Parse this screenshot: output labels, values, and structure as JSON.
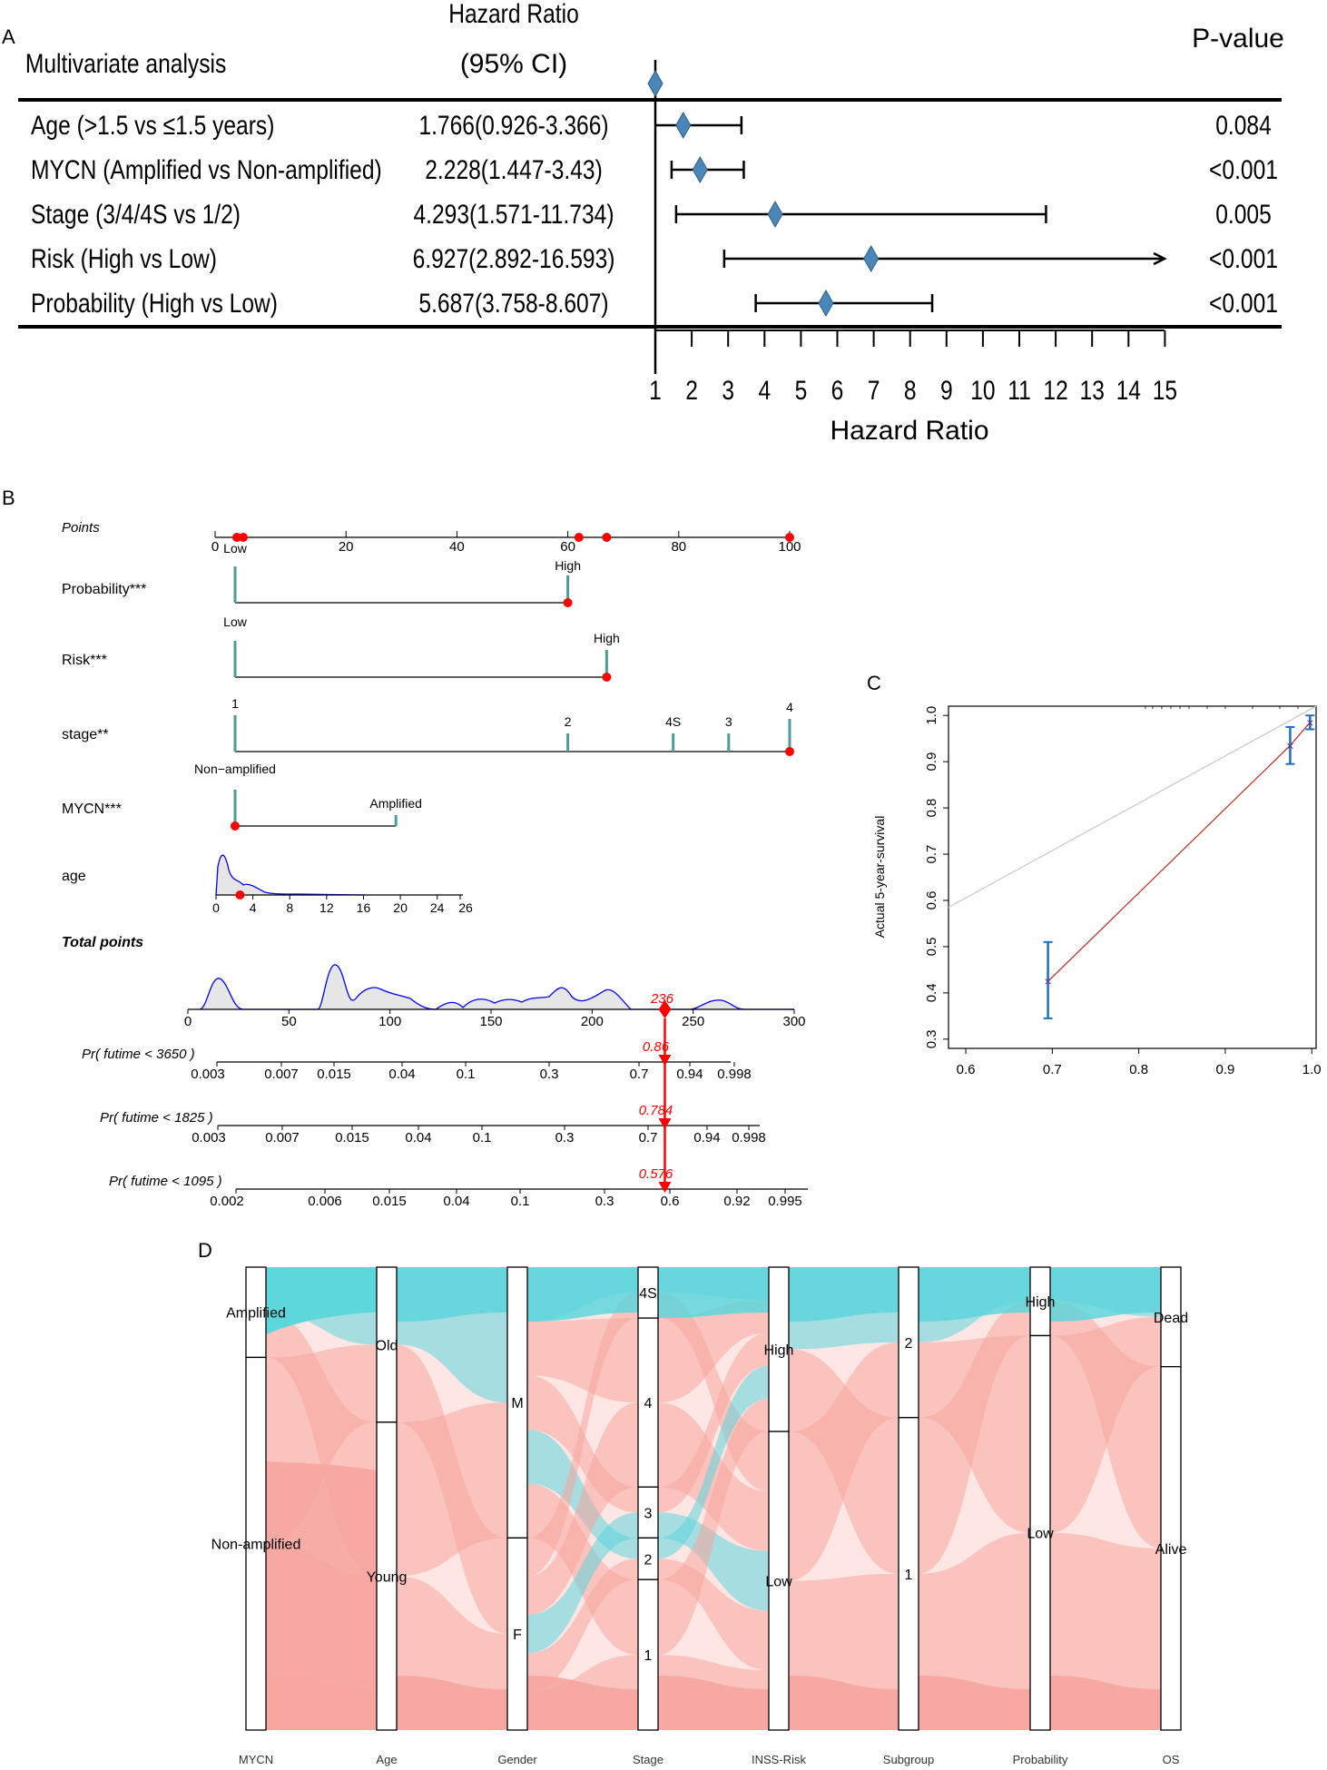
{
  "panels": {
    "A": {
      "letter": "A",
      "title": "Multivariate analysis",
      "hr_header_line1": "Hazard Ratio",
      "hr_header_line2": "(95% CI)",
      "pvalue_header": "P-value",
      "xlabel": "Hazard Ratio",
      "ticks": [
        "1",
        "2",
        "3",
        "4",
        "5",
        "6",
        "7",
        "8",
        "9",
        "10",
        "11",
        "12",
        "13",
        "14",
        "15"
      ]
    },
    "B": {
      "letter": "B"
    },
    "C": {
      "letter": "C"
    },
    "D": {
      "letter": "D"
    }
  },
  "chart_data": [
    {
      "type": "forest",
      "panel": "A",
      "title": "Multivariate analysis",
      "xlabel": "Hazard Ratio",
      "xlim": [
        1,
        15
      ],
      "reference_line": 1,
      "rows": [
        {
          "label": "Age (>1.5 vs ≤1.5 years)",
          "ci_text": "1.766(0.926-3.366)",
          "hr": 1.766,
          "lo": 0.926,
          "hi": 3.366,
          "p": "0.084"
        },
        {
          "label": "MYCN (Amplified vs Non-amplified)",
          "ci_text": "2.228(1.447-3.43)",
          "hr": 2.228,
          "lo": 1.447,
          "hi": 3.43,
          "p": "<0.001"
        },
        {
          "label": "Stage (3/4/4S vs 1/2)",
          "ci_text": "4.293(1.571-11.734)",
          "hr": 4.293,
          "lo": 1.571,
          "hi": 11.734,
          "p": "0.005"
        },
        {
          "label": "Risk (High vs Low)",
          "ci_text": "6.927(2.892-16.593)",
          "hr": 6.927,
          "lo": 2.892,
          "hi": 16.593,
          "p": "<0.001"
        },
        {
          "label": "Probability (High vs Low)",
          "ci_text": "5.687(3.758-8.607)",
          "hr": 5.687,
          "lo": 3.758,
          "hi": 8.607,
          "p": "<0.001"
        }
      ],
      "colors": {
        "diamond": "#4a86b8",
        "line": "#000000"
      }
    },
    {
      "type": "nomogram",
      "panel": "B",
      "points_axis": {
        "label": "Points",
        "range": [
          0,
          100
        ],
        "ticks": [
          "0",
          "20",
          "40",
          "60",
          "80",
          "100"
        ],
        "selected_points": [
          2,
          4,
          60,
          67,
          100
        ]
      },
      "variables": [
        {
          "label": "Probability***",
          "levels": [
            {
              "name": "Low",
              "points": 0
            },
            {
              "name": "High",
              "points": 60
            }
          ],
          "selected": "High"
        },
        {
          "label": "Risk***",
          "levels": [
            {
              "name": "Low",
              "points": 0
            },
            {
              "name": "High",
              "points": 67
            }
          ],
          "selected": "High"
        },
        {
          "label": "stage**",
          "levels": [
            {
              "name": "1",
              "points": 0
            },
            {
              "name": "2",
              "points": 60
            },
            {
              "name": "4S",
              "points": 79
            },
            {
              "name": "3",
              "points": 89
            },
            {
              "name": "4",
              "points": 100
            }
          ],
          "selected": "4"
        },
        {
          "label": "MYCN***",
          "levels": [
            {
              "name": "Non−amplified",
              "points": 0
            },
            {
              "name": "Amplified",
              "points": 29
            }
          ],
          "selected": "Non−amplified"
        }
      ],
      "age": {
        "label": "age",
        "ticks": [
          "0",
          "4",
          "8",
          "12",
          "16",
          "20",
          "24",
          "26"
        ],
        "selected_value": 2.6
      },
      "total_points": {
        "label": "Total points",
        "range": [
          0,
          300
        ],
        "ticks": [
          "0",
          "50",
          "100",
          "150",
          "200",
          "250",
          "300"
        ],
        "value": 236,
        "value_label": "236"
      },
      "probability_axes": [
        {
          "label": "Pr( futime < 3650 )",
          "ticks": [
            "0.003",
            "0.007",
            "0.015",
            "0.04",
            "0.1",
            "0.3",
            "0.7",
            "0.94",
            "0.998"
          ],
          "value": 0.86,
          "value_label": "0.86"
        },
        {
          "label": "Pr( futime < 1825 )",
          "ticks": [
            "0.003",
            "0.007",
            "0.015",
            "0.04",
            "0.1",
            "0.3",
            "0.7",
            "0.94",
            "0.998"
          ],
          "value": 0.784,
          "value_label": "0.784"
        },
        {
          "label": "Pr( futime < 1095 )",
          "ticks": [
            "0.002",
            "0.006",
            "0.015",
            "0.04",
            "0.1",
            "0.3",
            "0.6",
            "0.92",
            "0.995"
          ],
          "value": 0.576,
          "value_label": "0.576"
        }
      ],
      "colors": {
        "bar": "#4f9a9a",
        "point": "#ff0000",
        "density": "#0000ff",
        "density_fill": "#e6e6e6"
      }
    },
    {
      "type": "calibration",
      "panel": "C",
      "xlabel": "",
      "ylabel": "Actual 5-year-survival",
      "xlim": [
        0.58,
        1.005
      ],
      "ylim": [
        0.28,
        1.02
      ],
      "xticks": [
        "0.6",
        "0.7",
        "0.8",
        "0.9",
        "1.0"
      ],
      "yticks": [
        "0.3",
        "0.4",
        "0.5",
        "0.6",
        "0.7",
        "0.8",
        "0.9",
        "1.0"
      ],
      "points": [
        {
          "x": 0.695,
          "y": 0.425,
          "lo": 0.345,
          "hi": 0.51
        },
        {
          "x": 0.975,
          "y": 0.935,
          "lo": 0.895,
          "hi": 0.975
        },
        {
          "x": 0.998,
          "y": 0.985,
          "lo": 0.97,
          "hi": 1.0
        }
      ],
      "ideal_line": [
        [
          0.58,
          0.585
        ],
        [
          1.005,
          1.02
        ]
      ],
      "colors": {
        "errorbar": "#1f6fbf",
        "fit": "#c0392b",
        "marker": "#6a2a8a",
        "ideal": "#cccccc"
      }
    },
    {
      "type": "alluvial",
      "panel": "D",
      "axes": [
        {
          "name": "MYCN",
          "strata": [
            {
              "label": "Amplified",
              "frac": 0.195
            },
            {
              "label": "Non-amplified",
              "frac": 0.805
            }
          ]
        },
        {
          "name": "Age",
          "strata": [
            {
              "label": "Old",
              "frac": 0.335
            },
            {
              "label": "Young",
              "frac": 0.665
            }
          ]
        },
        {
          "name": "Gender",
          "strata": [
            {
              "label": "M",
              "frac": 0.585
            },
            {
              "label": "F",
              "frac": 0.415
            }
          ]
        },
        {
          "name": "Stage",
          "strata": [
            {
              "label": "4S",
              "frac": 0.11
            },
            {
              "label": "4",
              "frac": 0.365
            },
            {
              "label": "3",
              "frac": 0.11
            },
            {
              "label": "2",
              "frac": 0.09
            },
            {
              "label": "1",
              "frac": 0.325
            }
          ]
        },
        {
          "name": "INSS-Risk",
          "strata": [
            {
              "label": "High",
              "frac": 0.355
            },
            {
              "label": "Low",
              "frac": 0.645
            }
          ]
        },
        {
          "name": "Subgroup",
          "strata": [
            {
              "label": "2",
              "frac": 0.325
            },
            {
              "label": "1",
              "frac": 0.675
            }
          ]
        },
        {
          "name": "Probability",
          "strata": [
            {
              "label": "High",
              "frac": 0.148
            },
            {
              "label": "Low",
              "frac": 0.852
            }
          ]
        },
        {
          "name": "OS",
          "strata": [
            {
              "label": "Dead",
              "frac": 0.215
            },
            {
              "label": "Alive",
              "frac": 0.785
            }
          ]
        }
      ],
      "colors": {
        "fill_amplified": "#5dd6dc",
        "fill_nonamplified": "#f7a59f"
      }
    }
  ]
}
